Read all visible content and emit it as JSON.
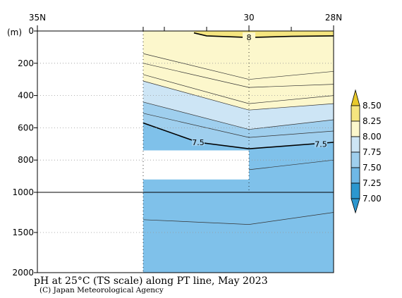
{
  "chart_data": {
    "type": "heatmap",
    "title": "pH at 25°C (TS scale) along PT line, May 2023",
    "credit": "(C) Japan Meteorological Agency",
    "depth_unit": "(m)",
    "x_ticks": [
      {
        "label": "35N",
        "lat": 35
      },
      {
        "label": "30",
        "lat": 30
      },
      {
        "label": "28N",
        "lat": 28
      }
    ],
    "x_range": [
      35,
      28
    ],
    "y_ticks_upper": [
      "0",
      "200",
      "400",
      "600",
      "800",
      "1000"
    ],
    "y_ticks_lower": [
      "1500",
      "2000"
    ],
    "y_range_upper": [
      0,
      1000
    ],
    "y_range_lower": [
      1000,
      2000
    ],
    "colorbar": {
      "levels": [
        "8.50",
        "8.25",
        "8.00",
        "7.75",
        "7.50",
        "7.25",
        "7.00"
      ],
      "colors": [
        "#e9c92b",
        "#f5e57f",
        "#fcf7cc",
        "#cde5f5",
        "#9fcfee",
        "#6fb8e6",
        "#2c97cf"
      ]
    },
    "stations_lat": [
      32.5,
      32.0,
      31.0,
      30.0,
      29.0
    ],
    "contours": [
      {
        "level": "8",
        "label": "8",
        "points": [
          [
            31.3,
            12
          ],
          [
            31.0,
            30
          ],
          [
            30.0,
            40
          ],
          [
            29.0,
            33
          ],
          [
            28.0,
            30
          ]
        ]
      },
      {
        "level": "7.95",
        "label": "",
        "points": [
          [
            32.5,
            140
          ],
          [
            30.0,
            300
          ],
          [
            28.0,
            250
          ]
        ]
      },
      {
        "level": "7.9",
        "label": "",
        "points": [
          [
            32.5,
            200
          ],
          [
            30.0,
            350
          ],
          [
            28.0,
            330
          ]
        ]
      },
      {
        "level": "7.85",
        "label": "",
        "points": [
          [
            32.5,
            270
          ],
          [
            30.0,
            450
          ],
          [
            28.0,
            400
          ]
        ]
      },
      {
        "level": "7.8",
        "label": "",
        "points": [
          [
            32.5,
            310
          ],
          [
            30.0,
            490
          ],
          [
            28.0,
            450
          ]
        ]
      },
      {
        "level": "7.7",
        "label": "",
        "points": [
          [
            32.5,
            440
          ],
          [
            30.0,
            610
          ],
          [
            28.0,
            550
          ]
        ]
      },
      {
        "level": "7.6",
        "label": "",
        "points": [
          [
            32.5,
            510
          ],
          [
            30.0,
            660
          ],
          [
            28.0,
            620
          ]
        ]
      },
      {
        "level": "7.5",
        "label": "7.5",
        "points": [
          [
            32.5,
            570
          ],
          [
            31.2,
            690
          ],
          [
            30.0,
            730
          ],
          [
            28.0,
            690
          ]
        ]
      },
      {
        "level": "7.45",
        "label": "",
        "points": [
          [
            30.0,
            860
          ],
          [
            28.0,
            800
          ]
        ]
      },
      {
        "level": "7.4",
        "label": "",
        "points": [
          [
            32.5,
            1340
          ],
          [
            30.0,
            1400
          ],
          [
            28.0,
            1250
          ]
        ]
      }
    ],
    "fill_regions": [
      {
        "color": "#fcf7cc",
        "points": [
          [
            32.5,
            0
          ],
          [
            28.0,
            0
          ],
          [
            28.0,
            450
          ],
          [
            30.0,
            490
          ],
          [
            32.5,
            310
          ]
        ]
      },
      {
        "color": "#f5e57f",
        "points": [
          [
            31.3,
            0
          ],
          [
            28.0,
            0
          ],
          [
            28.0,
            30
          ],
          [
            29.0,
            33
          ],
          [
            30.0,
            40
          ],
          [
            31.0,
            30
          ],
          [
            31.3,
            12
          ]
        ]
      },
      {
        "color": "#cde5f5",
        "points": [
          [
            32.5,
            310
          ],
          [
            30.0,
            490
          ],
          [
            28.0,
            450
          ],
          [
            28.0,
            550
          ],
          [
            30.0,
            610
          ],
          [
            32.5,
            440
          ]
        ]
      },
      {
        "color": "#9fcfee",
        "points": [
          [
            32.5,
            440
          ],
          [
            30.0,
            610
          ],
          [
            28.0,
            550
          ],
          [
            28.0,
            690
          ],
          [
            30.0,
            730
          ],
          [
            31.2,
            690
          ],
          [
            32.5,
            570
          ]
        ]
      },
      {
        "color": "#7fc1ea",
        "points": [
          [
            32.5,
            570
          ],
          [
            31.2,
            690
          ],
          [
            30.0,
            730
          ],
          [
            28.0,
            690
          ],
          [
            28.0,
            2000
          ],
          [
            32.5,
            2000
          ]
        ]
      }
    ],
    "gap_region": [
      [
        32.5,
        740
      ],
      [
        30.0,
        740
      ],
      [
        30.0,
        920
      ],
      [
        32.5,
        920
      ]
    ],
    "grid": true
  }
}
